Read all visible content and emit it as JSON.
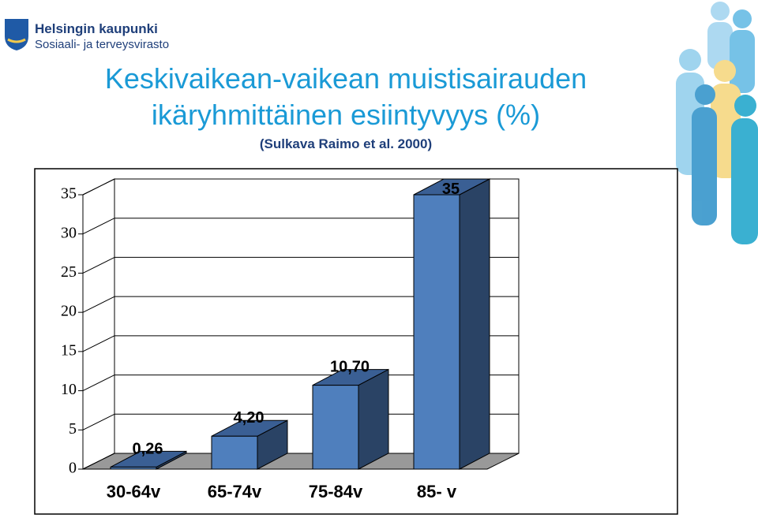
{
  "header": {
    "org": "Helsingin kaupunki",
    "dept": "Sosiaali- ja terveysvirasto"
  },
  "chart_data": {
    "type": "bar3d",
    "title": [
      "Keskivaikean-vaikean muistisairauden",
      "ikäryhmittäinen esiintyvyys (%)"
    ],
    "subtitle": "(Sulkava Raimo et al. 2000)",
    "categories": [
      "30-64v",
      "65-74v",
      "75-84v",
      "85- v"
    ],
    "values": [
      0.26,
      4.2,
      10.7,
      35
    ],
    "value_labels": [
      "0,26",
      "4,20",
      "10,70",
      "35"
    ],
    "color": "#4f7fbd",
    "ylim": [
      0,
      35
    ],
    "yticks": [
      0,
      5,
      10,
      15,
      20,
      25,
      30,
      35
    ],
    "grid": true
  }
}
